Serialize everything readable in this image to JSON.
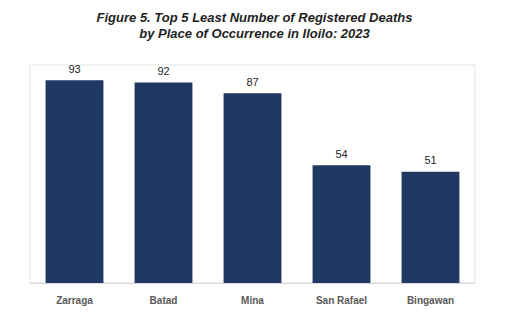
{
  "chart_data": {
    "type": "bar",
    "title": "Figure 5. Top 5 Least Number of Registered Deaths\nby Place of Occurrence in Iloilo: 2023",
    "categories": [
      "Zarraga",
      "Batad",
      "Mina",
      "San Rafael",
      "Bingawan"
    ],
    "values": [
      93,
      92,
      87,
      54,
      51
    ],
    "color": "#1f3864",
    "ylim": [
      0,
      100
    ],
    "grid": false,
    "data_labels": true,
    "tick_labels": "x"
  }
}
